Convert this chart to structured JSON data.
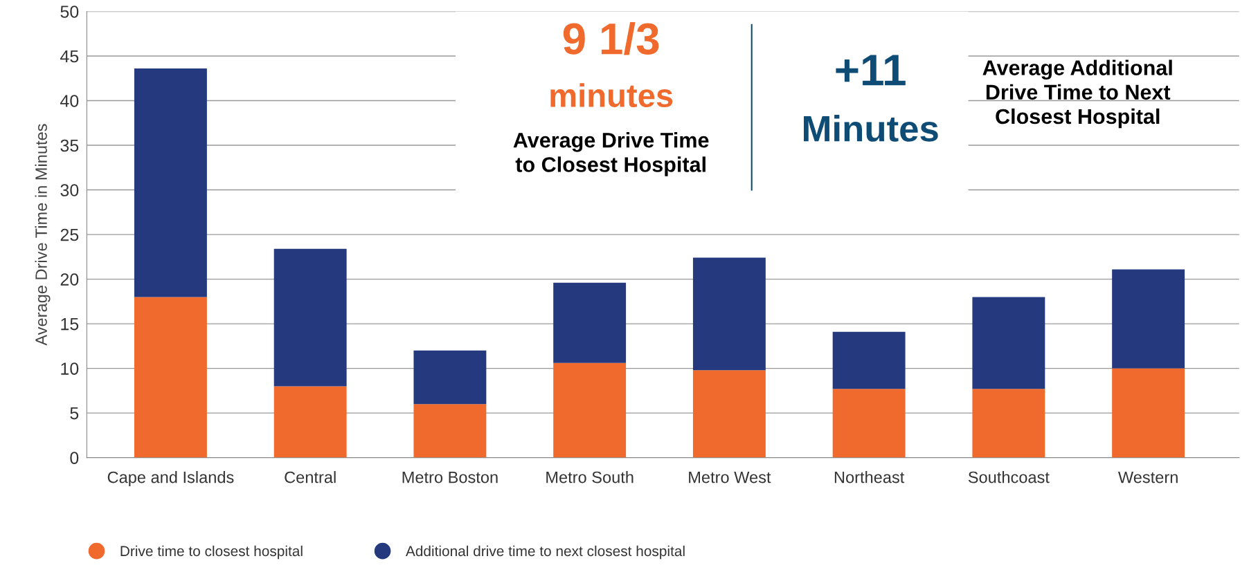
{
  "chart_data": {
    "type": "bar",
    "stacked": true,
    "ylabel": "Average Drive Time in Minutes",
    "categories": [
      "Cape and Islands",
      "Central",
      "Metro Boston",
      "Metro South",
      "Metro West",
      "Northeast",
      "Southcoast",
      "Western"
    ],
    "series": [
      {
        "name": "Drive time to closest hospital",
        "color": "#f0692d",
        "values": [
          18.0,
          8.0,
          6.0,
          10.6,
          9.8,
          7.7,
          7.7,
          10.0
        ]
      },
      {
        "name": "Additional drive time to next closest hospital",
        "color": "#253a7e",
        "values": [
          25.6,
          15.4,
          6.0,
          9.0,
          12.6,
          6.4,
          10.3,
          11.1
        ]
      }
    ],
    "ylim": [
      0,
      50
    ],
    "yticks": [
      0,
      5,
      10,
      15,
      20,
      25,
      30,
      35,
      40,
      45,
      50
    ],
    "grid": "y",
    "legend": "bottom left",
    "marker": "circle",
    "annotations": [
      "9 1/3",
      "minutes",
      "Average Drive Time\nto Closest Hospital",
      "+11",
      "Minutes",
      "Average Additional\nDrive Time to Next\nClosest Hospital"
    ]
  }
}
